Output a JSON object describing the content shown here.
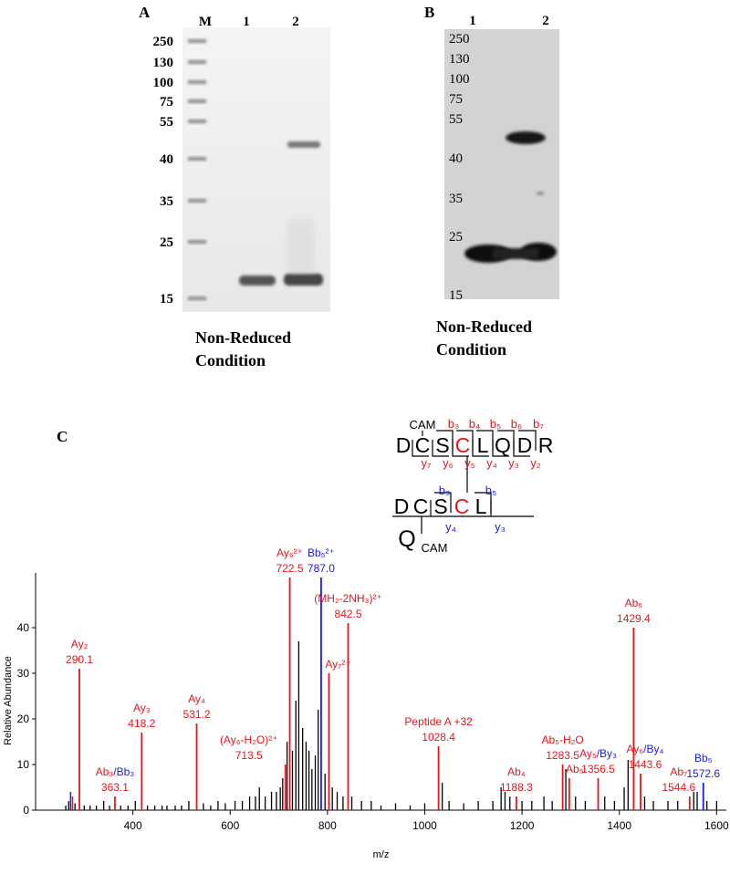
{
  "panel_a": {
    "label": "A",
    "lanes": [
      "M",
      "1",
      "2"
    ],
    "markers": [
      250,
      130,
      100,
      75,
      55,
      40,
      35,
      25,
      15
    ],
    "caption": [
      "Non-Reduced",
      "Condition"
    ]
  },
  "panel_b": {
    "label": "B",
    "lanes": [
      "1",
      "2"
    ],
    "markers": [
      250,
      130,
      100,
      75,
      55,
      40,
      35,
      25,
      15
    ],
    "caption": [
      "Non-Reduced",
      "Condition"
    ]
  },
  "panel_c": {
    "label": "C",
    "peptide_1": {
      "modification": "CAM",
      "residues": [
        "D",
        "C",
        "S",
        "C",
        "L",
        "Q",
        "D",
        "R"
      ],
      "b_ions": [
        "b₃",
        "b₄",
        "b₅",
        "b₆",
        "b₇"
      ],
      "y_ions": [
        "y₇",
        "y₆",
        "y₅",
        "y₄",
        "y₃",
        "y₂"
      ]
    },
    "peptide_2": {
      "residues": [
        "D",
        "C",
        "S",
        "C",
        "L"
      ],
      "b_ions": [
        "b₃",
        "b₅"
      ],
      "y_ions": [
        "y₄",
        "y₃"
      ],
      "branch": "Q",
      "modification": "CAM"
    }
  },
  "chart_data": {
    "type": "stem",
    "x_label": "m/z",
    "y_label": "Relative Abundance",
    "xlim": [
      200,
      1620
    ],
    "xticks": [
      400,
      600,
      800,
      1000,
      1200,
      1400,
      1600
    ],
    "ylim": [
      0,
      52
    ],
    "yticks": [
      0,
      10,
      20,
      30,
      40
    ],
    "peaks": {
      "color": "#000000",
      "x": [
        262,
        268,
        281,
        300,
        312,
        325,
        340,
        352,
        375,
        390,
        405,
        430,
        445,
        460,
        470,
        487,
        500,
        515,
        545,
        560,
        575,
        590,
        610,
        625,
        640,
        652,
        660,
        672,
        685,
        695,
        703,
        708,
        717,
        728,
        735,
        741,
        749,
        756,
        762,
        768,
        775,
        781,
        795,
        810,
        820,
        832,
        850,
        870,
        890,
        910,
        940,
        970,
        1000,
        1036,
        1050,
        1080,
        1110,
        1140,
        1157,
        1165,
        1175,
        1200,
        1220,
        1245,
        1262,
        1290,
        1310,
        1330,
        1370,
        1390,
        1410,
        1418,
        1452,
        1470,
        1500,
        1520,
        1553,
        1560,
        1580,
        1600
      ],
      "values": [
        1,
        2,
        1.5,
        1,
        1,
        1,
        2,
        1,
        1,
        1,
        2,
        1,
        1,
        1,
        1,
        1,
        1,
        2,
        1.5,
        1,
        2,
        1.5,
        2,
        2,
        3,
        3,
        5,
        3,
        4,
        4,
        5,
        7,
        15,
        13,
        24,
        37,
        18,
        15,
        13,
        9,
        12,
        22,
        8,
        5,
        4,
        3,
        3,
        2,
        2,
        1,
        1.5,
        1,
        1.5,
        6,
        2,
        1.5,
        2,
        2,
        5,
        4,
        3,
        2,
        2,
        3,
        2,
        9,
        3,
        2,
        3,
        2,
        5,
        11,
        3,
        2,
        2,
        2,
        4,
        4,
        2,
        2
      ]
    },
    "minor_colored": {
      "x": [
        272,
        276
      ],
      "values": [
        4,
        3
      ],
      "colors": [
        "#1a1ae6",
        "#e8141c"
      ]
    },
    "annotated": {
      "x": [
        290.1,
        363.1,
        418.2,
        531.2,
        713.5,
        722.5,
        787.0,
        803,
        842.5,
        1028.4,
        1188.3,
        1283.5,
        1297,
        1356.5,
        1429.4,
        1443.6,
        1544.6,
        1572.6
      ],
      "values": [
        31,
        3,
        17,
        19,
        10,
        51,
        51,
        30,
        41,
        14,
        3,
        10,
        7,
        7,
        40,
        8,
        3,
        6
      ],
      "colors": [
        "#e8141c",
        "#e8141c",
        "#e8141c",
        "#e8141c",
        "#e8141c",
        "#e8141c",
        "#1a1ae6",
        "#e8141c",
        "#e8141c",
        "#e8141c",
        "#e8141c",
        "#e8141c",
        "#e8141c",
        "#e8141c",
        "#e8141c",
        "#e8141c",
        "#e8141c",
        "#1a1ae6"
      ],
      "x_labels": [
        "290.1",
        "363.1",
        "418.2",
        "531.2",
        "713.5",
        "722.5",
        "787.0",
        null,
        "842.5",
        "1028.4",
        "1188.3",
        "1283.5",
        null,
        "1356.5",
        "1429.4",
        "1443.6",
        "1544.6",
        "1572.6"
      ],
      "label_parts": [
        [
          "Ay₂"
        ],
        [
          "Ab₃",
          "/Bb₃"
        ],
        [
          "Ay₃"
        ],
        [
          "Ay₄"
        ],
        [
          "(Ay₆-H₂O)²⁺"
        ],
        [
          "Ay₆²⁺"
        ],
        [
          "Bb₅²⁺"
        ],
        [
          "Ay₇²⁺"
        ],
        [
          "(MH₂-2NH₃)²⁺"
        ],
        [
          "Peptide A +32"
        ],
        [
          "Ab₄"
        ],
        [
          "Ab₅-H₂O"
        ],
        [
          "Ab₅"
        ],
        [
          "Ay₅",
          "/By₃"
        ],
        [
          "Ab₆"
        ],
        [
          "Ay₆",
          "/By₄"
        ],
        [
          "Ab₇"
        ],
        [
          "Bb₅"
        ]
      ],
      "label_colors": [
        [
          "#e8141c"
        ],
        [
          "#e8141c",
          "#1a1ae6"
        ],
        [
          "#e8141c"
        ],
        [
          "#e8141c"
        ],
        [
          "#e8141c"
        ],
        [
          "#e8141c"
        ],
        [
          "#1a1ae6"
        ],
        [
          "#e8141c"
        ],
        [
          "#e8141c"
        ],
        [
          "#e8141c"
        ],
        [
          "#e8141c"
        ],
        [
          "#e8141c"
        ],
        [
          "#e8141c"
        ],
        [
          "#e8141c",
          "#1a1ae6"
        ],
        [
          "#e8141c"
        ],
        [
          "#e8141c",
          "#1a1ae6"
        ],
        [
          "#e8141c"
        ],
        [
          "#1a1ae6"
        ]
      ]
    }
  }
}
